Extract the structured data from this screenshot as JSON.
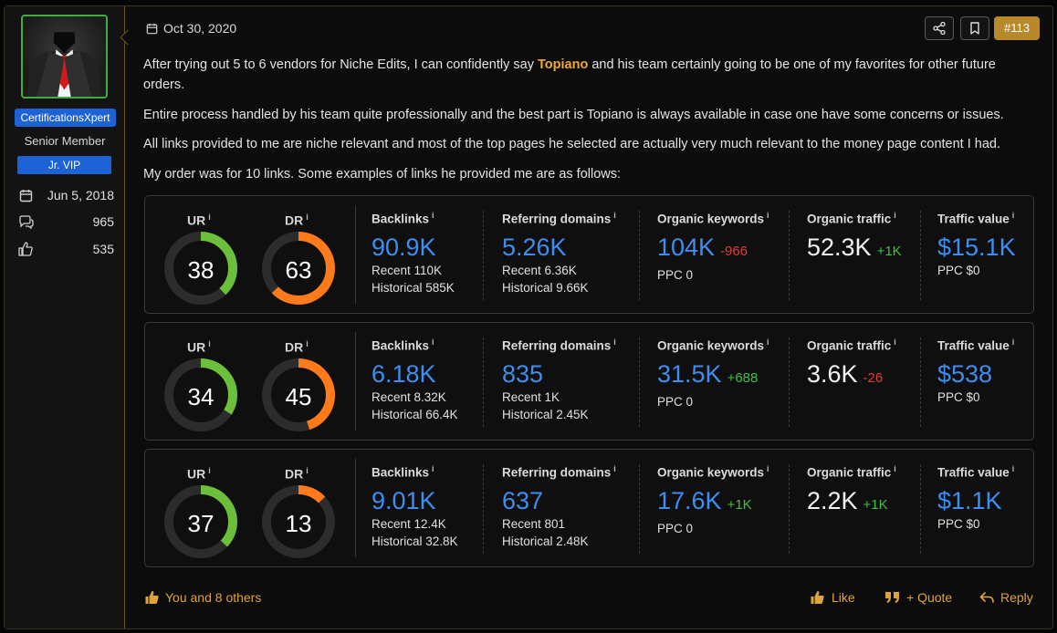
{
  "sidebar": {
    "username": "CertificationsXpert",
    "user_title": "Senior Member",
    "badge": "Jr. VIP",
    "joined": "Jun 5, 2018",
    "messages": "965",
    "reactions": "535"
  },
  "header": {
    "date": "Oct 30, 2020",
    "post_number": "#113"
  },
  "body": {
    "p1_a": "After trying out 5 to 6 vendors for Niche Edits, I can confidently say ",
    "p1_bold": "Topiano",
    "p1_b": " and his team certainly going to be one of my favorites for other future orders.",
    "p2": "Entire process handled by his team quite professionally and the best part is Topiano is always available in case one have some concerns or issues.",
    "p3": "All links provided to me are niche relevant and most of the top pages he selected are actually very much relevant to the money page content I had.",
    "p4": "My order was for 10 links. Some examples of links he provided me are as follows:"
  },
  "labels": {
    "ur": "UR",
    "dr": "DR",
    "info": "i",
    "backlinks": "Backlinks",
    "refdomains": "Referring domains",
    "keywords": "Organic keywords",
    "traffic": "Organic traffic",
    "value": "Traffic value"
  },
  "colors": {
    "green": "#6bbf3a",
    "orange": "#ff7a1a",
    "track": "#2c2c2c",
    "blue": "#3d8ef0",
    "gold": "#e0a33c"
  },
  "rows": [
    {
      "ur": 38,
      "dr": 63,
      "backlinks": "90.9K",
      "bl_recent": "Recent 110K",
      "bl_hist": "Historical 585K",
      "refdomains": "5.26K",
      "rd_recent": "Recent 6.36K",
      "rd_hist": "Historical 9.66K",
      "keywords": "104K",
      "kw_delta": "-966",
      "kw_ppc": "PPC 0",
      "traffic": "52.3K",
      "tr_delta": "+1K",
      "value": "$15.1K",
      "val_ppc": "PPC $0"
    },
    {
      "ur": 34,
      "dr": 45,
      "backlinks": "6.18K",
      "bl_recent": "Recent 8.32K",
      "bl_hist": "Historical 66.4K",
      "refdomains": "835",
      "rd_recent": "Recent 1K",
      "rd_hist": "Historical 2.45K",
      "keywords": "31.5K",
      "kw_delta": "+688",
      "kw_ppc": "PPC 0",
      "traffic": "3.6K",
      "tr_delta": "-26",
      "value": "$538",
      "val_ppc": "PPC $0"
    },
    {
      "ur": 37,
      "dr": 13,
      "backlinks": "9.01K",
      "bl_recent": "Recent 12.4K",
      "bl_hist": "Historical 32.8K",
      "refdomains": "637",
      "rd_recent": "Recent 801",
      "rd_hist": "Historical 2.48K",
      "keywords": "17.6K",
      "kw_delta": "+1K",
      "kw_ppc": "PPC 0",
      "traffic": "2.2K",
      "tr_delta": "+1K",
      "value": "$1.1K",
      "val_ppc": "PPC $0"
    }
  ],
  "footer": {
    "likes": "You and 8 others",
    "like": "Like",
    "quote": "+ Quote",
    "reply": "Reply"
  }
}
